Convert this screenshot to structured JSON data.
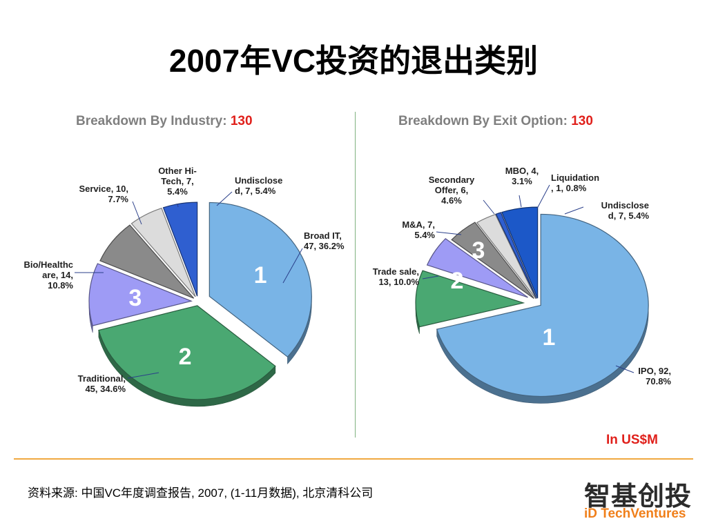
{
  "title": "2007年VC投资的退出类别",
  "unit_note": "In US$M",
  "source": "资料来源: 中国VC年度调查报告, 2007, (1-11月数据), 北京清科公司",
  "logo": {
    "cn": "智基创投",
    "en": "iD TechVentures"
  },
  "colors": {
    "accent_red": "#e0201b",
    "heading_gray": "#7f7f7f",
    "rule_orange": "#f0a840"
  },
  "chart_data": [
    {
      "type": "pie",
      "title": "Breakdown By  Industry:",
      "total": "130",
      "slices": [
        {
          "name": "Broad IT",
          "value": 47,
          "pct": 36.2,
          "rank": "1",
          "color": "#79b4e6",
          "label": [
            "Broad IT,",
            "47, 36.2%"
          ]
        },
        {
          "name": "Traditional",
          "value": 45,
          "pct": 34.6,
          "rank": "2",
          "color": "#4aa872",
          "label": [
            "Traditional,",
            "45, 34.6%"
          ]
        },
        {
          "name": "Bio/Healthcare",
          "value": 14,
          "pct": 10.8,
          "rank": "3",
          "color": "#9e9bf5",
          "label": [
            "Bio/Healthc",
            "are, 14,",
            "10.8%"
          ]
        },
        {
          "name": "Service",
          "value": 10,
          "pct": 7.7,
          "rank": "",
          "color": "#8a8a8a",
          "label": [
            "Service, 10,",
            "7.7%"
          ]
        },
        {
          "name": "Other Hi-Tech",
          "value": 7,
          "pct": 5.4,
          "rank": "",
          "color": "#dcdcdc",
          "label": [
            "Other Hi-",
            "Tech, 7,",
            "5.4%"
          ]
        },
        {
          "name": "Undisclosed",
          "value": 7,
          "pct": 5.4,
          "rank": "",
          "color": "#2f5fd0",
          "label": [
            "Undisclose",
            "d, 7, 5.4%"
          ]
        }
      ]
    },
    {
      "type": "pie",
      "title": "Breakdown By Exit Option:",
      "total": "130",
      "slices": [
        {
          "name": "IPO",
          "value": 92,
          "pct": 70.8,
          "rank": "1",
          "color": "#79b4e6",
          "label": [
            "IPO, 92,",
            "70.8%"
          ]
        },
        {
          "name": "Trade sale",
          "value": 13,
          "pct": 10.0,
          "rank": "2",
          "color": "#4aa872",
          "label": [
            "Trade sale,",
            "13, 10.0%"
          ]
        },
        {
          "name": "M&A",
          "value": 7,
          "pct": 5.4,
          "rank": "3",
          "color": "#9e9bf5",
          "label": [
            "M&A, 7,",
            "5.4%"
          ]
        },
        {
          "name": "Secondary Offer",
          "value": 6,
          "pct": 4.6,
          "rank": "",
          "color": "#8a8a8a",
          "label": [
            "Secondary",
            "Offer, 6,",
            "4.6%"
          ]
        },
        {
          "name": "MBO",
          "value": 4,
          "pct": 3.1,
          "rank": "",
          "color": "#dcdcdc",
          "label": [
            "MBO, 4,",
            "3.1%"
          ]
        },
        {
          "name": "Liquidation",
          "value": 1,
          "pct": 0.8,
          "rank": "",
          "color": "#2f5fd0",
          "label": [
            "Liquidation",
            ", 1, 0.8%"
          ]
        },
        {
          "name": "Undisclosed",
          "value": 7,
          "pct": 5.4,
          "rank": "",
          "color": "#1c58c8",
          "label": [
            "Undisclose",
            "d, 7, 5.4%"
          ]
        }
      ]
    }
  ]
}
